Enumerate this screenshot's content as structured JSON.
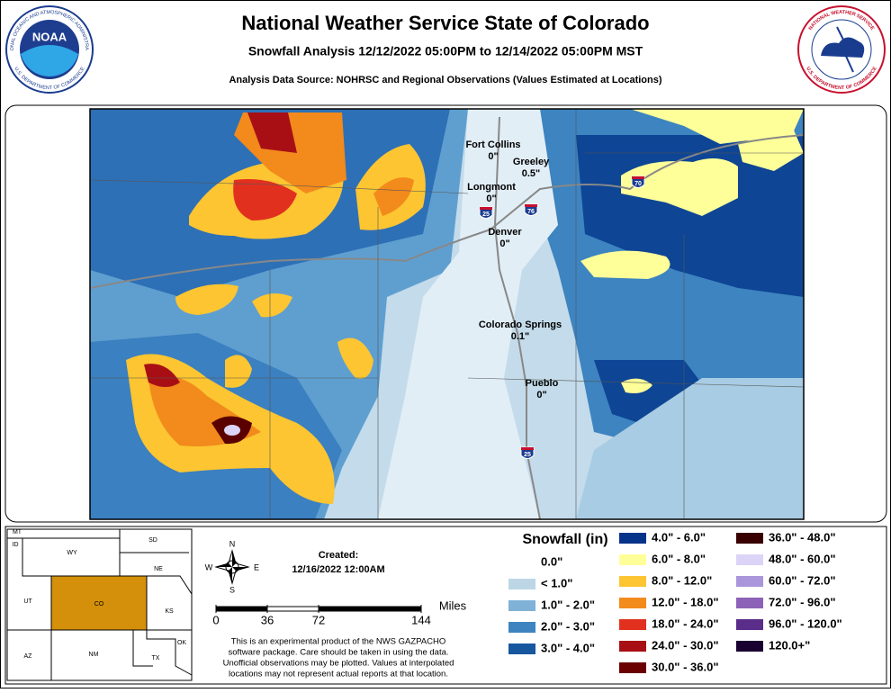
{
  "header": {
    "title": "National Weather Service State of Colorado",
    "subtitle": "Snowfall Analysis 12/12/2022 05:00PM to 12/14/2022 05:00PM MST",
    "source": "Analysis Data Source: NOHRSC and Regional Observations (Values Estimated at Locations)"
  },
  "logos": {
    "noaa": "NOAA",
    "noaa_top": "NATIONAL OCEANIC AND ATMOSPHERIC ADMINISTRATION",
    "noaa_bottom": "U.S. DEPARTMENT OF COMMERCE",
    "nws_top": "NATIONAL WEATHER SERVICE",
    "nws_bottom": "U.S. DEPARTMENT OF COMMERCE"
  },
  "cities": [
    {
      "name": "Fort Collins",
      "snowfall": "0\""
    },
    {
      "name": "Greeley",
      "snowfall": "0.5\""
    },
    {
      "name": "Longmont",
      "snowfall": "0\""
    },
    {
      "name": "Denver",
      "snowfall": "0\""
    },
    {
      "name": "Colorado Springs",
      "snowfall": "0.1\""
    },
    {
      "name": "Pueblo",
      "snowfall": "0\""
    }
  ],
  "interstates": [
    "70",
    "25",
    "76",
    "25"
  ],
  "inset": {
    "states": [
      "MT",
      "ID",
      "WY",
      "SD",
      "NE",
      "UT",
      "CO",
      "KS",
      "AZ",
      "NM",
      "TX",
      "OK"
    ]
  },
  "compass": [
    "N",
    "E",
    "S",
    "W"
  ],
  "created": {
    "label": "Created:",
    "date": "12/16/2022 12:00AM"
  },
  "scale": {
    "unit": "Miles",
    "ticks": [
      0,
      36,
      72,
      144
    ]
  },
  "disclaimer": [
    "This is an experimental product of the NWS GAZPACHO",
    "software package. Care should be taken in using the data.",
    "Unofficial observations may be plotted. Values at interpolated",
    "locations may not represent actual reports at that location."
  ],
  "legend": {
    "title": "Snowfall (in)",
    "items": [
      {
        "label": "0.0\"",
        "color": "#ffffff"
      },
      {
        "label": "< 1.0\"",
        "color": "#bcd6e6"
      },
      {
        "label": "1.0\" - 2.0\"",
        "color": "#7fb2d6"
      },
      {
        "label": "2.0\" - 3.0\"",
        "color": "#3d84c0"
      },
      {
        "label": "3.0\" - 4.0\"",
        "color": "#17579e"
      },
      {
        "label": "4.0\" - 6.0\"",
        "color": "#08338a"
      },
      {
        "label": "6.0\" - 8.0\"",
        "color": "#ffff99"
      },
      {
        "label": "8.0\" - 12.0\"",
        "color": "#fcc531"
      },
      {
        "label": "12.0\" - 18.0\"",
        "color": "#f28a1c"
      },
      {
        "label": "18.0\" - 24.0\"",
        "color": "#e2301f"
      },
      {
        "label": "24.0\" - 30.0\"",
        "color": "#a80f15"
      },
      {
        "label": "30.0\" - 36.0\"",
        "color": "#6a0000"
      },
      {
        "label": "36.0\" - 48.0\"",
        "color": "#380000"
      },
      {
        "label": "48.0\" - 60.0\"",
        "color": "#dcd4f6"
      },
      {
        "label": "60.0\" - 72.0\"",
        "color": "#aa96da"
      },
      {
        "label": "72.0\" - 96.0\"",
        "color": "#8c62b8"
      },
      {
        "label": "96.0\" - 120.0\"",
        "color": "#5a2d8a"
      },
      {
        "label": "120.0+\"",
        "color": "#1a0030"
      }
    ]
  }
}
